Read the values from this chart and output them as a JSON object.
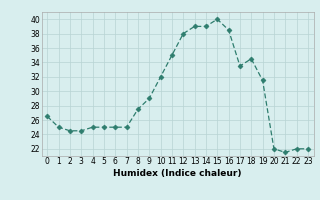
{
  "xlabel": "Humidex (Indice chaleur)",
  "x": [
    0,
    1,
    2,
    3,
    4,
    5,
    6,
    7,
    8,
    9,
    10,
    11,
    12,
    13,
    14,
    15,
    16,
    17,
    18,
    19,
    20,
    21,
    22,
    23
  ],
  "y": [
    26.5,
    25.0,
    24.5,
    24.5,
    25.0,
    25.0,
    25.0,
    25.0,
    27.5,
    29.0,
    32.0,
    35.0,
    38.0,
    39.0,
    39.0,
    40.0,
    38.5,
    33.5,
    34.5,
    31.5,
    22.0,
    21.5,
    22.0,
    22.0
  ],
  "ylim": [
    21,
    41
  ],
  "xlim": [
    -0.5,
    23.5
  ],
  "yticks": [
    22,
    24,
    26,
    28,
    30,
    32,
    34,
    36,
    38,
    40
  ],
  "xticks": [
    0,
    1,
    2,
    3,
    4,
    5,
    6,
    7,
    8,
    9,
    10,
    11,
    12,
    13,
    14,
    15,
    16,
    17,
    18,
    19,
    20,
    21,
    22,
    23
  ],
  "line_color": "#2e7d6e",
  "marker": "D",
  "marker_size": 2.5,
  "bg_color": "#d8eeee",
  "grid_color": "#b8d4d4",
  "label_fontsize": 6.5,
  "tick_fontsize": 5.5
}
